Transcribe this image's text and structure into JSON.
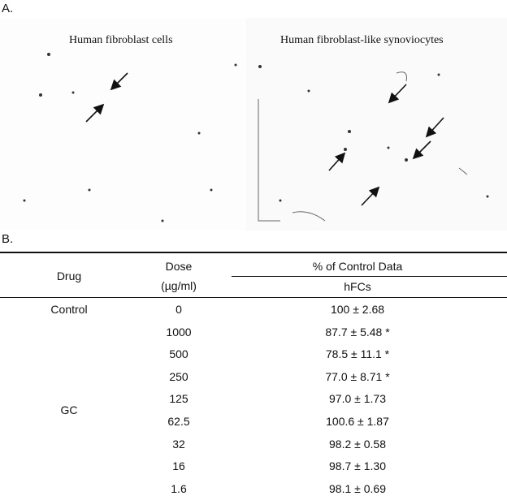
{
  "panel_a": {
    "label": "A.",
    "images": [
      {
        "caption": "Human fibroblast cells"
      },
      {
        "caption": "Human fibroblast-like synoviocytes"
      }
    ]
  },
  "panel_b": {
    "label": "B.",
    "table": {
      "header": {
        "drug": "Drug",
        "dose": "Dose",
        "dose_unit": "(µg/ml)",
        "group": "% of Control Data",
        "sub": "hFCs"
      },
      "groups": [
        {
          "drug": "Control",
          "rows": [
            {
              "dose": "0",
              "value": "100 ± 2.68"
            }
          ]
        },
        {
          "drug": "GC",
          "rows": [
            {
              "dose": "1000",
              "value": "87.7 ± 5.48 *"
            },
            {
              "dose": "500",
              "value": "78.5 ± 11.1 *"
            },
            {
              "dose": "250",
              "value": "77.0 ± 8.71 *"
            },
            {
              "dose": "125",
              "value": "97.0 ± 1.73"
            },
            {
              "dose": "62.5",
              "value": "100.6 ± 1.87"
            },
            {
              "dose": "32",
              "value": "98.2 ± 0.58"
            },
            {
              "dose": "16",
              "value": "98.7 ± 1.30"
            },
            {
              "dose": "1.6",
              "value": "98.1 ± 0.69"
            }
          ]
        }
      ]
    }
  }
}
